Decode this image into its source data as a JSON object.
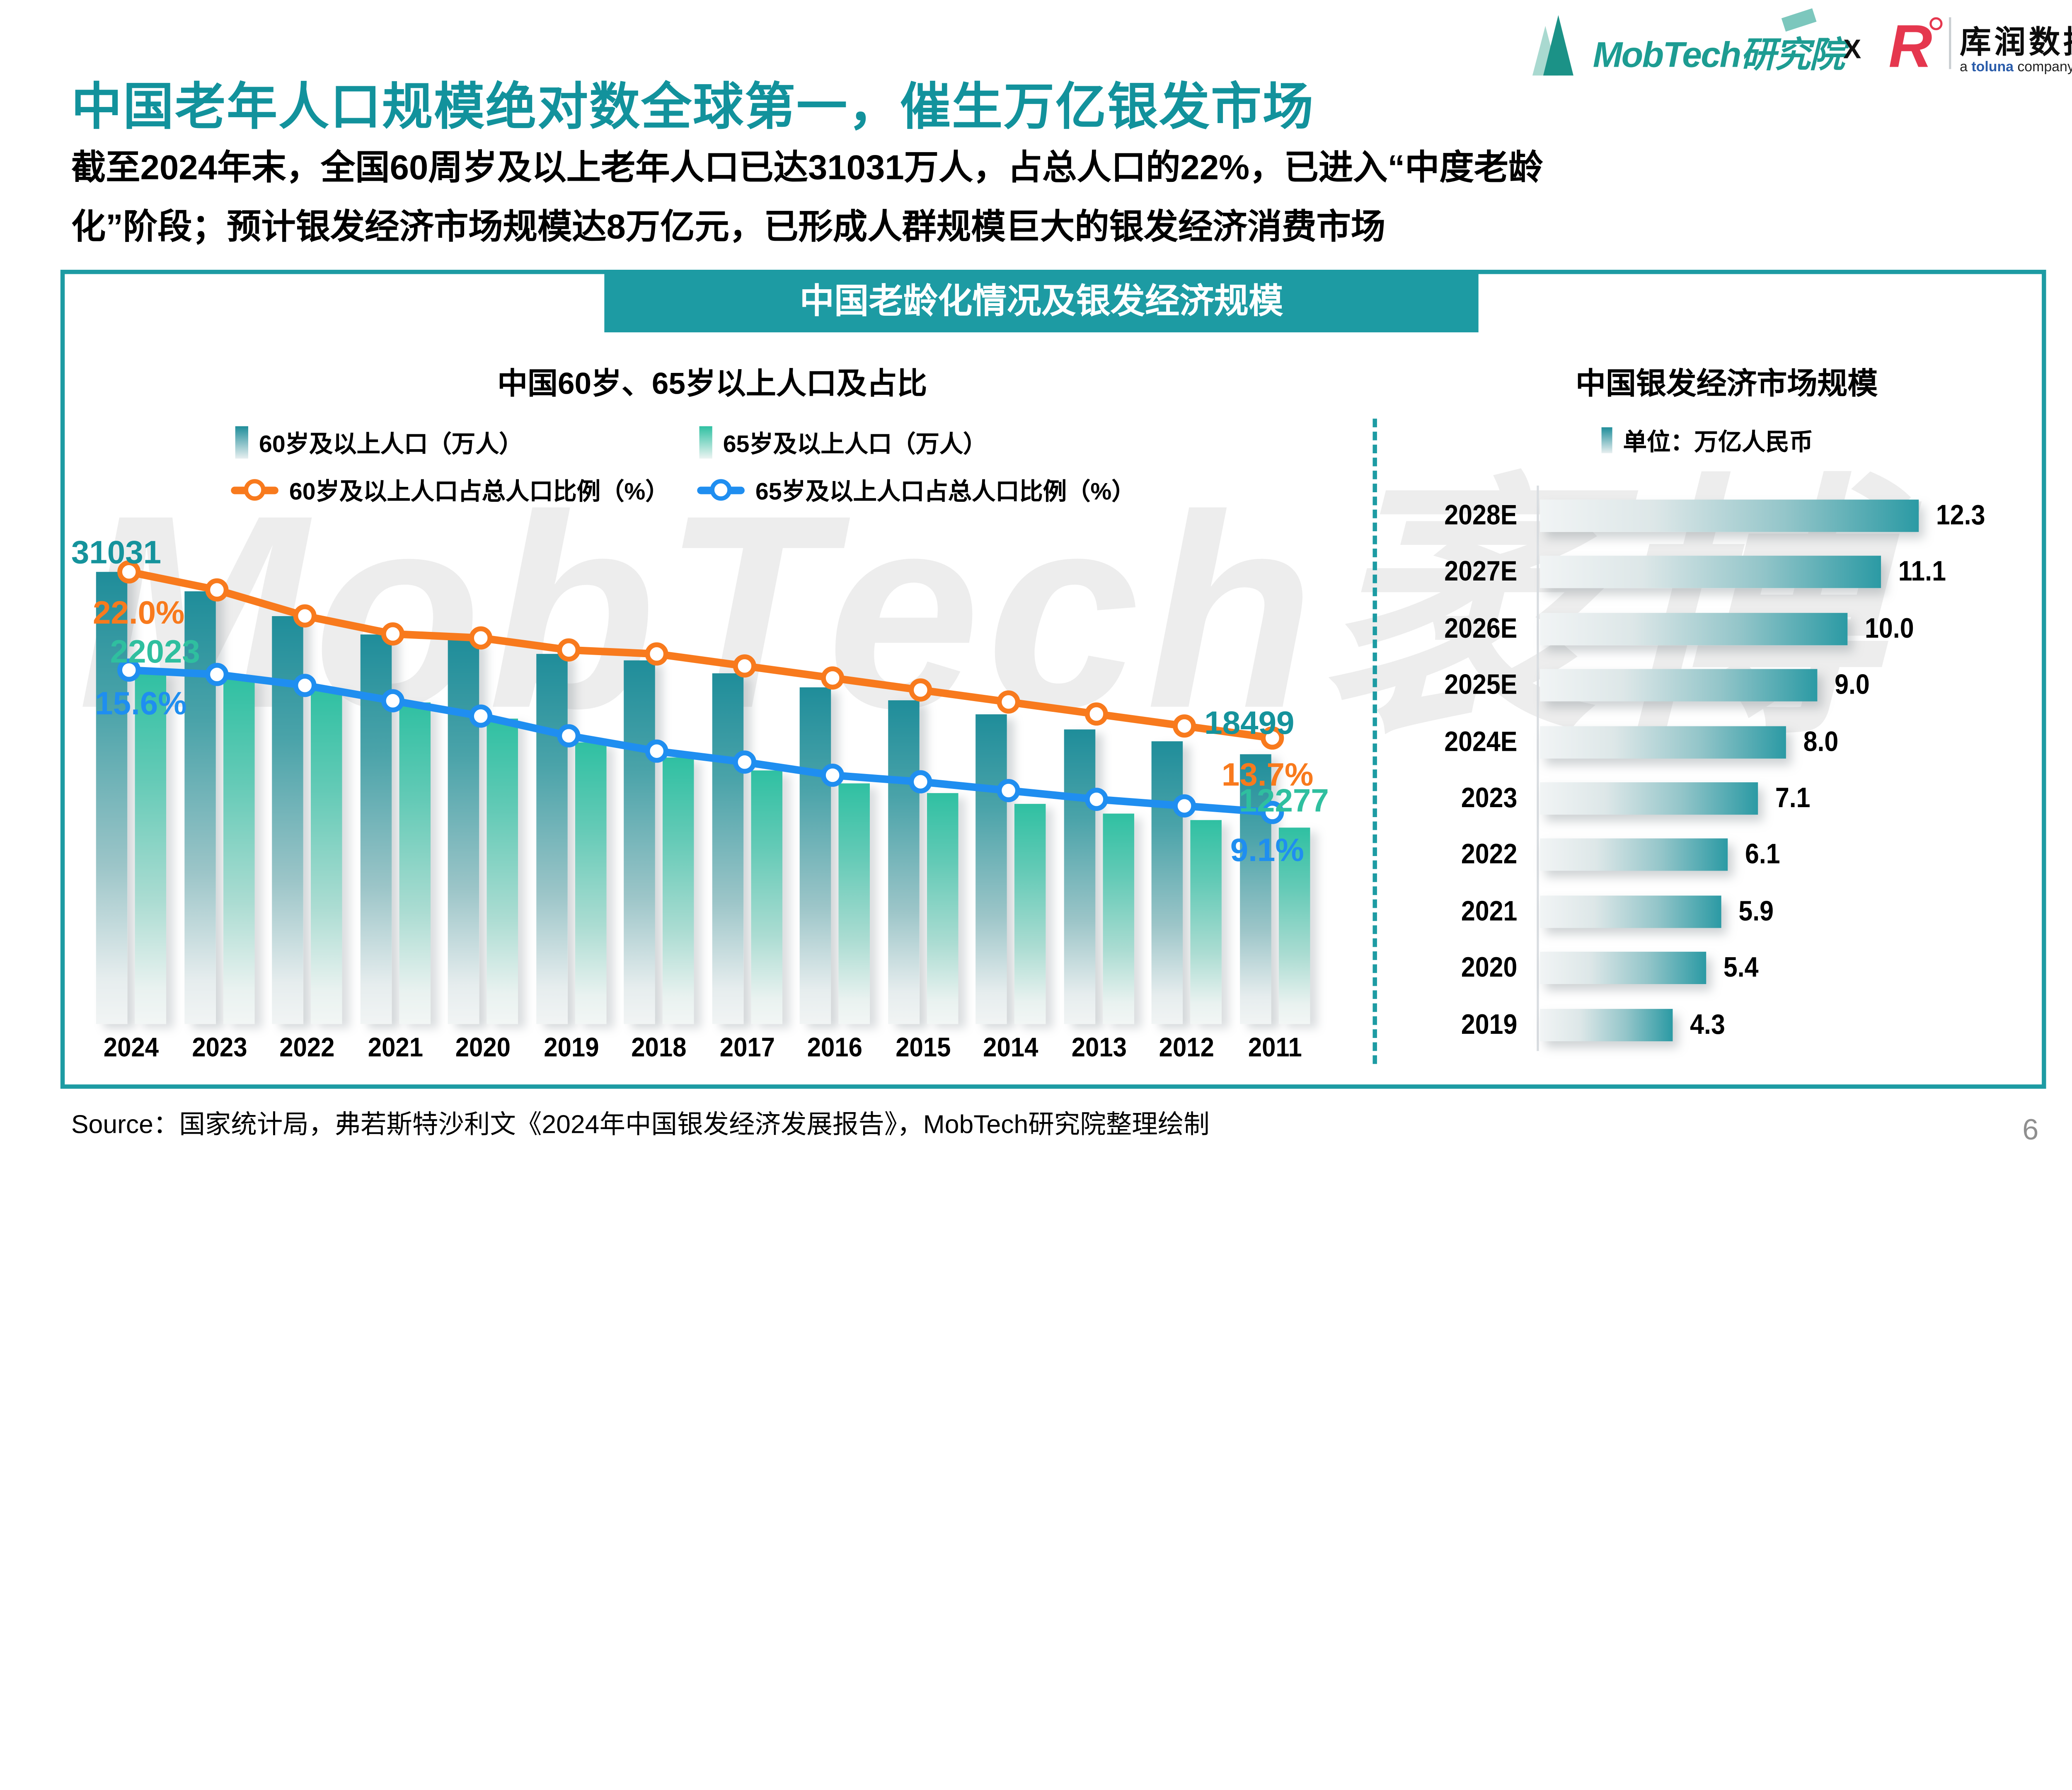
{
  "brand": {
    "mobtech": "MobTech研究院",
    "separator": "X",
    "kurun": "库润数据",
    "kurun_tagline": {
      "pre": "a ",
      "brand": "toluna",
      "post": " company"
    }
  },
  "page": {
    "title": "中国老年人口规模绝对数全球第一，催生万亿银发市场",
    "subtitle": "截至2024年末，全国60周岁及以上老年人口已达31031万人，占总人口的22%，已进入“中度老龄\n化”阶段；预计银发经济市场规模达8万亿元，已形成人群规模巨大的银发经济消费市场",
    "source": "Source：国家统计局，弗若斯特沙利文《2024年中国银发经济发展报告》，MobTech研究院整理绘制",
    "number": "6",
    "watermark": "MobTech袤博"
  },
  "panel": {
    "header": "中国老龄化情况及银发经济规模"
  },
  "colors": {
    "teal": "#1d9ba3",
    "title_teal": "#12929c",
    "orange": "#f87a1d",
    "blue": "#1f8ef0",
    "green": "#2fbf9f",
    "bar60_top": "#1f8d9a",
    "bar65_top": "#2fc0a2"
  },
  "annotations": {
    "pop60_2024": "31031",
    "pct60_2024": "22.0%",
    "pop65_2024": "22023",
    "pct65_2024": "15.6%",
    "pop60_2011": "18499",
    "pct60_2011": "13.7%",
    "pop65_2011": "12277",
    "pct65_2011": "9.1%"
  },
  "chart_data": [
    {
      "type": "bar",
      "subtype": "bar+line combo, dual axis",
      "title": "中国60岁、65岁以上人口及占比",
      "categories": [
        "2024",
        "2023",
        "2022",
        "2021",
        "2020",
        "2019",
        "2018",
        "2017",
        "2016",
        "2015",
        "2014",
        "2013",
        "2012",
        "2011"
      ],
      "series": [
        {
          "name": "60岁及以上人口（万人）",
          "type": "bar",
          "color": "#1f8d9a",
          "values": [
            31031,
            29697,
            28004,
            26736,
            26402,
            25388,
            24949,
            24090,
            23086,
            22200,
            21242,
            20243,
            19390,
            18499
          ],
          "labeled_points": {
            "2024": "31031",
            "2011": "18499"
          }
        },
        {
          "name": "65岁及以上人口（万人）",
          "type": "bar",
          "color": "#2fc0a2",
          "values": [
            22023,
            21676,
            20978,
            20056,
            19064,
            17603,
            16658,
            15831,
            15003,
            14386,
            13755,
            13161,
            12714,
            12277
          ],
          "labeled_points": {
            "2024": "22023",
            "2011": "12277"
          }
        },
        {
          "name": "60岁及以上人口占总人口比例（%）",
          "type": "line",
          "color": "#f87a1d",
          "values": [
            22.0,
            21.1,
            19.8,
            18.9,
            18.7,
            18.1,
            17.9,
            17.3,
            16.7,
            16.1,
            15.5,
            14.9,
            14.3,
            13.7
          ],
          "labeled_points": {
            "2024": "22.0%",
            "2011": "13.7%"
          }
        },
        {
          "name": "65岁及以上人口占总人口比例（%）",
          "type": "line",
          "color": "#1f8ef0",
          "values": [
            15.6,
            15.4,
            14.9,
            14.2,
            13.5,
            12.6,
            11.9,
            11.4,
            10.8,
            10.5,
            10.1,
            9.7,
            9.4,
            9.1
          ],
          "labeled_points": {
            "2024": "15.6%",
            "2011": "9.1%"
          }
        }
      ],
      "note": "仅2024与2011两端标注数值，中间年份数值按柱高估计",
      "legend_position": "top",
      "grid": false
    },
    {
      "type": "bar",
      "orientation": "horizontal",
      "title": "中国银发经济市场规模",
      "unit_label": "单位：万亿人民币",
      "categories": [
        "2028E",
        "2027E",
        "2026E",
        "2025E",
        "2024E",
        "2023",
        "2022",
        "2021",
        "2020",
        "2019"
      ],
      "values": [
        12.3,
        11.1,
        10.0,
        9.0,
        8.0,
        7.1,
        6.1,
        5.9,
        5.4,
        4.3
      ],
      "xlim": [
        0,
        13
      ],
      "grid": false
    }
  ]
}
